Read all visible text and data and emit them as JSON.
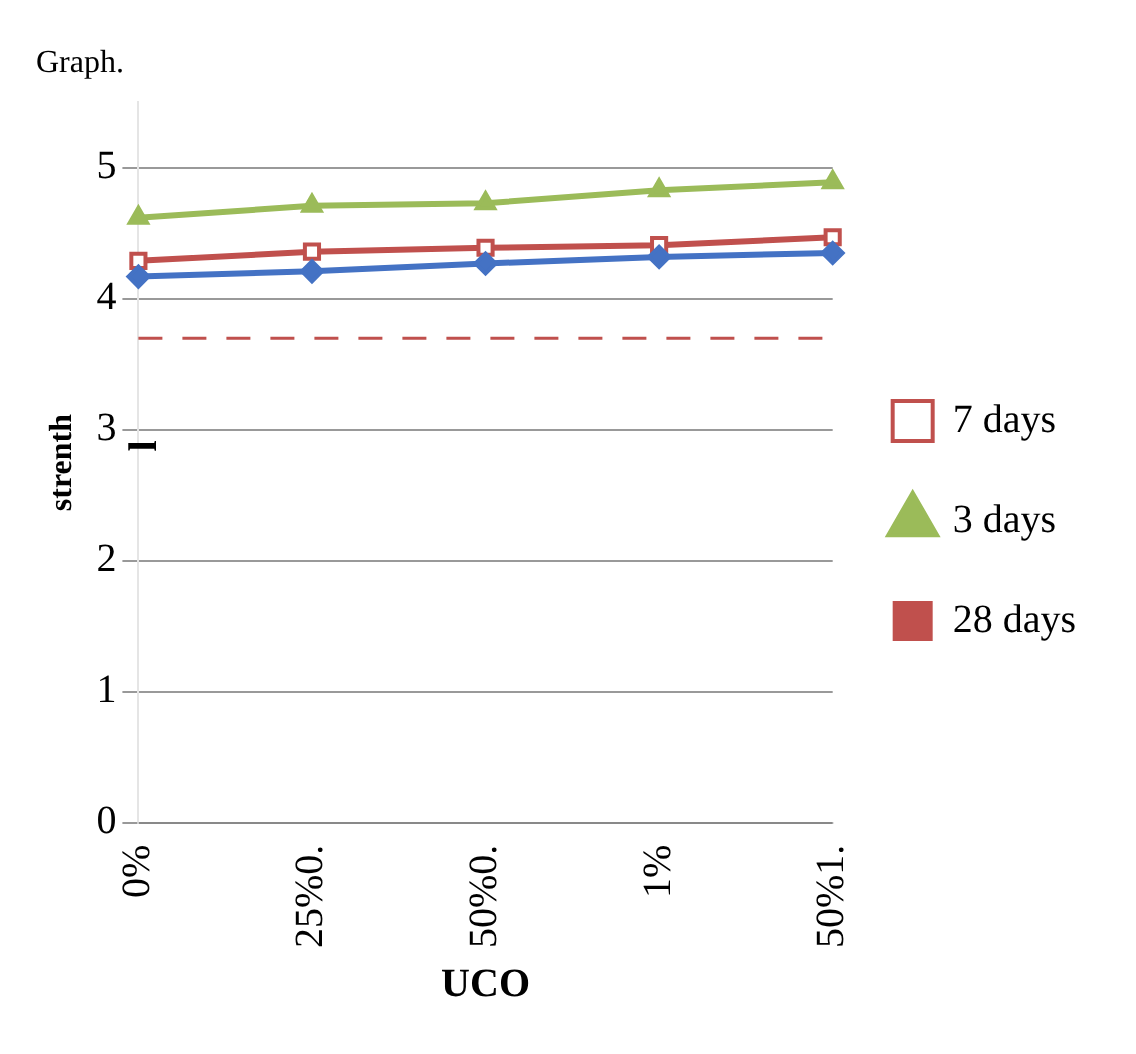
{
  "chart_data": {
    "type": "line",
    "title": "Graph.",
    "ylabel": "strenth",
    "xlabel": "UCO",
    "annotations": [
      "l"
    ],
    "categories": [
      "0%",
      "25%0.",
      "50%0.",
      "1%",
      "50%1."
    ],
    "series": [
      {
        "color": "#4472c4",
        "values": [
          4.17,
          4.21,
          4.27,
          4.32,
          4.35
        ],
        "marker": "diamond"
      },
      {
        "name": "7 days",
        "color": "#c0504d",
        "values": [
          4.29,
          4.36,
          4.39,
          4.41,
          4.47
        ],
        "marker": "square"
      },
      {
        "name": "3 days",
        "color": "#9bbb59",
        "values": [
          4.62,
          4.71,
          4.73,
          4.83,
          4.89
        ],
        "marker": "triangle"
      },
      {
        "name": "28 days",
        "color": "#c0504d",
        "values": [
          3.7,
          3.7,
          3.7,
          3.7,
          3.7
        ],
        "marker": "none",
        "line_style": "dashed"
      }
    ],
    "ylim": [
      0,
      5.5
    ],
    "yticks": [
      0,
      1,
      2,
      3,
      4,
      5
    ],
    "grid": "y",
    "legend": "right"
  }
}
